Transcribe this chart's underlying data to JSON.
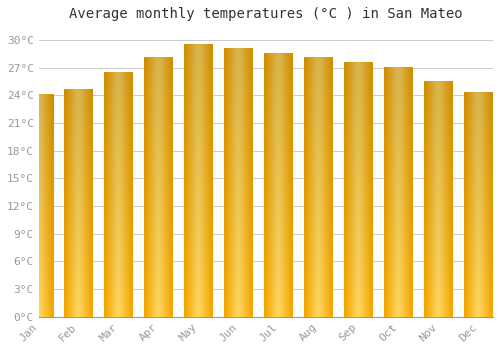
{
  "title": "Average monthly temperatures (°C ) in San Mateo",
  "months": [
    "Jan",
    "Feb",
    "Mar",
    "Apr",
    "May",
    "Jun",
    "Jul",
    "Aug",
    "Sep",
    "Oct",
    "Nov",
    "Dec"
  ],
  "values": [
    24.1,
    24.7,
    26.5,
    28.1,
    29.5,
    29.1,
    28.6,
    28.1,
    27.6,
    27.0,
    25.5,
    24.3
  ],
  "bar_color_edge": "#F5A800",
  "bar_color_center": "#FFD966",
  "yticks": [
    0,
    3,
    6,
    9,
    12,
    15,
    18,
    21,
    24,
    27,
    30
  ],
  "ylim": [
    0,
    31.5
  ],
  "background_color": "#FFFFFF",
  "grid_color": "#CCCCCC",
  "title_fontsize": 10,
  "tick_fontsize": 8,
  "tick_color": "#999999",
  "font_family": "monospace"
}
